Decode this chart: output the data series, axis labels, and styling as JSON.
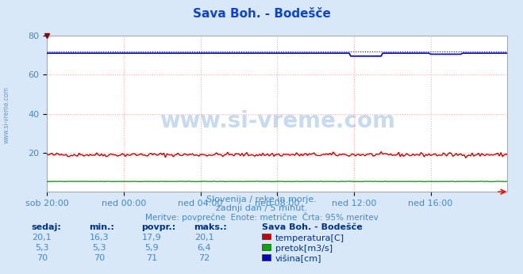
{
  "title": "Sava Boh. - Bodešče",
  "title_color": "#1144cc",
  "bg_color": "#d8e8f8",
  "plot_bg_color": "#ffffff",
  "grid_color": "#ffaaaa",
  "grid_style": ":",
  "xlabel_color": "#4488cc",
  "xlim": [
    0,
    288
  ],
  "ylim": [
    0,
    80
  ],
  "yticks": [
    20,
    40,
    60,
    80
  ],
  "xtick_labels": [
    "sob 20:00",
    "ned 00:00",
    "ned 04:00",
    "ned 08:00",
    "ned 12:00",
    "ned 16:00"
  ],
  "xtick_positions": [
    0,
    48,
    96,
    144,
    192,
    240
  ],
  "temp_color": "#cc0000",
  "flow_color": "#00aa00",
  "height_color": "#0000cc",
  "subtitle1": "Slovenija / reke in morje.",
  "subtitle2": "zadnji dan / 5 minut.",
  "subtitle3": "Meritve: povprečne  Enote: metrične  Črta: 95% meritev",
  "subtitle_color": "#4488cc",
  "watermark": "www.si-vreme.com",
  "watermark_color": "#4488cc",
  "legend_title": "Sava Boh. - Bodešče",
  "legend_title_color": "#003388",
  "legend_items": [
    "temperatura[C]",
    "pretok[m3/s]",
    "višina[cm]"
  ],
  "legend_colors": [
    "#cc0000",
    "#00aa00",
    "#0000cc"
  ],
  "legend_values_sedaj": [
    "20,1",
    "5,3",
    "70"
  ],
  "legend_values_min": [
    "16,3",
    "5,3",
    "70"
  ],
  "legend_values_povpr": [
    "17,9",
    "5,9",
    "71"
  ],
  "legend_values_maks": [
    "20,1",
    "6,4",
    "72"
  ],
  "table_headers": [
    "sedaj:",
    "min.:",
    "povpr.:",
    "maks.:"
  ],
  "table_header_color": "#003388",
  "table_value_color": "#4488cc",
  "figsize": [
    6.59,
    3.46
  ],
  "dpi": 100
}
